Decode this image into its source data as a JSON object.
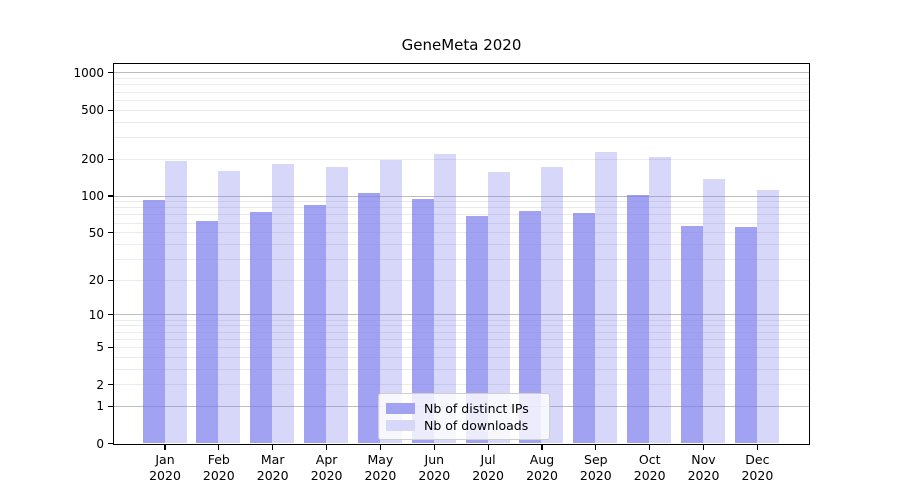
{
  "chart_data": {
    "type": "bar",
    "title": "GeneMeta 2020",
    "categories": [
      "Jan 2020",
      "Feb 2020",
      "Mar 2020",
      "Apr 2020",
      "May 2020",
      "Jun 2020",
      "Jul 2020",
      "Aug 2020",
      "Sep 2020",
      "Oct 2020",
      "Nov 2020",
      "Dec 2020"
    ],
    "series": [
      {
        "name": "Nb of distinct IPs",
        "color": "rgba(122,122,236,0.7)",
        "legend_color": "#a2a2f2",
        "values": [
          92,
          62,
          73,
          84,
          105,
          93,
          68,
          75,
          72,
          101,
          56,
          55
        ]
      },
      {
        "name": "Nb of downloads",
        "color": "rgba(122,122,236,0.3)",
        "legend_color": "#d7d7f9",
        "values": [
          193,
          158,
          180,
          172,
          195,
          217,
          156,
          170,
          228,
          205,
          136,
          111
        ]
      }
    ],
    "xlabel": "",
    "ylabel": "",
    "y_scale": "log10(value+1)",
    "y_ticks": [
      0,
      1,
      2,
      5,
      10,
      20,
      50,
      100,
      200,
      500,
      1000
    ],
    "y_minor_ticks": [
      2,
      3,
      4,
      5,
      6,
      7,
      8,
      9,
      20,
      30,
      40,
      50,
      60,
      70,
      80,
      90,
      200,
      300,
      400,
      500,
      600,
      700,
      800,
      900
    ],
    "y_major_gridlines": [
      1,
      10,
      100,
      1000
    ],
    "ylim": [
      0,
      1170
    ],
    "grid": {
      "minor_color": "#eaeaea",
      "major_color": "#bdbdbd"
    },
    "legend_position": "lower-center-inside",
    "frame_color": "#000000"
  }
}
